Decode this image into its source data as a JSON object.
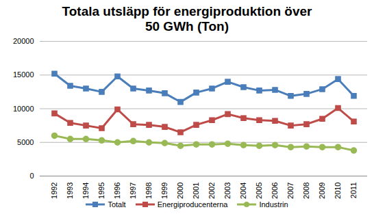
{
  "chart_data": {
    "type": "line",
    "title": "Totala utsläpp för energiproduktion över 50 GWh (Ton)",
    "categories": [
      "1992",
      "1993",
      "1994",
      "1995",
      "1996",
      "1997",
      "1998",
      "1999",
      "2000",
      "2001",
      "2002",
      "2003",
      "2004",
      "2005",
      "2006",
      "2007",
      "2008",
      "2009",
      "2010",
      "2011"
    ],
    "series": [
      {
        "name": "Totalt",
        "color": "#4a7ebb",
        "marker": "square",
        "values": [
          15200,
          13400,
          13000,
          12500,
          14800,
          13000,
          12700,
          12300,
          11000,
          12400,
          13000,
          14000,
          13200,
          12700,
          12800,
          11900,
          12200,
          12900,
          14400,
          11900
        ]
      },
      {
        "name": "Energiproducenterna",
        "color": "#be4b48",
        "marker": "square",
        "values": [
          9300,
          7900,
          7500,
          7100,
          9900,
          7700,
          7600,
          7300,
          6500,
          7600,
          8300,
          9200,
          8600,
          8300,
          8200,
          7500,
          7700,
          8500,
          10100,
          8100
        ]
      },
      {
        "name": "Industrin",
        "color": "#98b954",
        "marker": "circle",
        "values": [
          6000,
          5500,
          5500,
          5300,
          5000,
          5200,
          5000,
          4900,
          4500,
          4700,
          4700,
          4800,
          4600,
          4500,
          4600,
          4300,
          4400,
          4300,
          4300,
          3800
        ]
      }
    ],
    "ylim": [
      0,
      20000
    ],
    "yticks": [
      0,
      5000,
      10000,
      15000,
      20000
    ],
    "grid": true,
    "legend": "bottom"
  }
}
